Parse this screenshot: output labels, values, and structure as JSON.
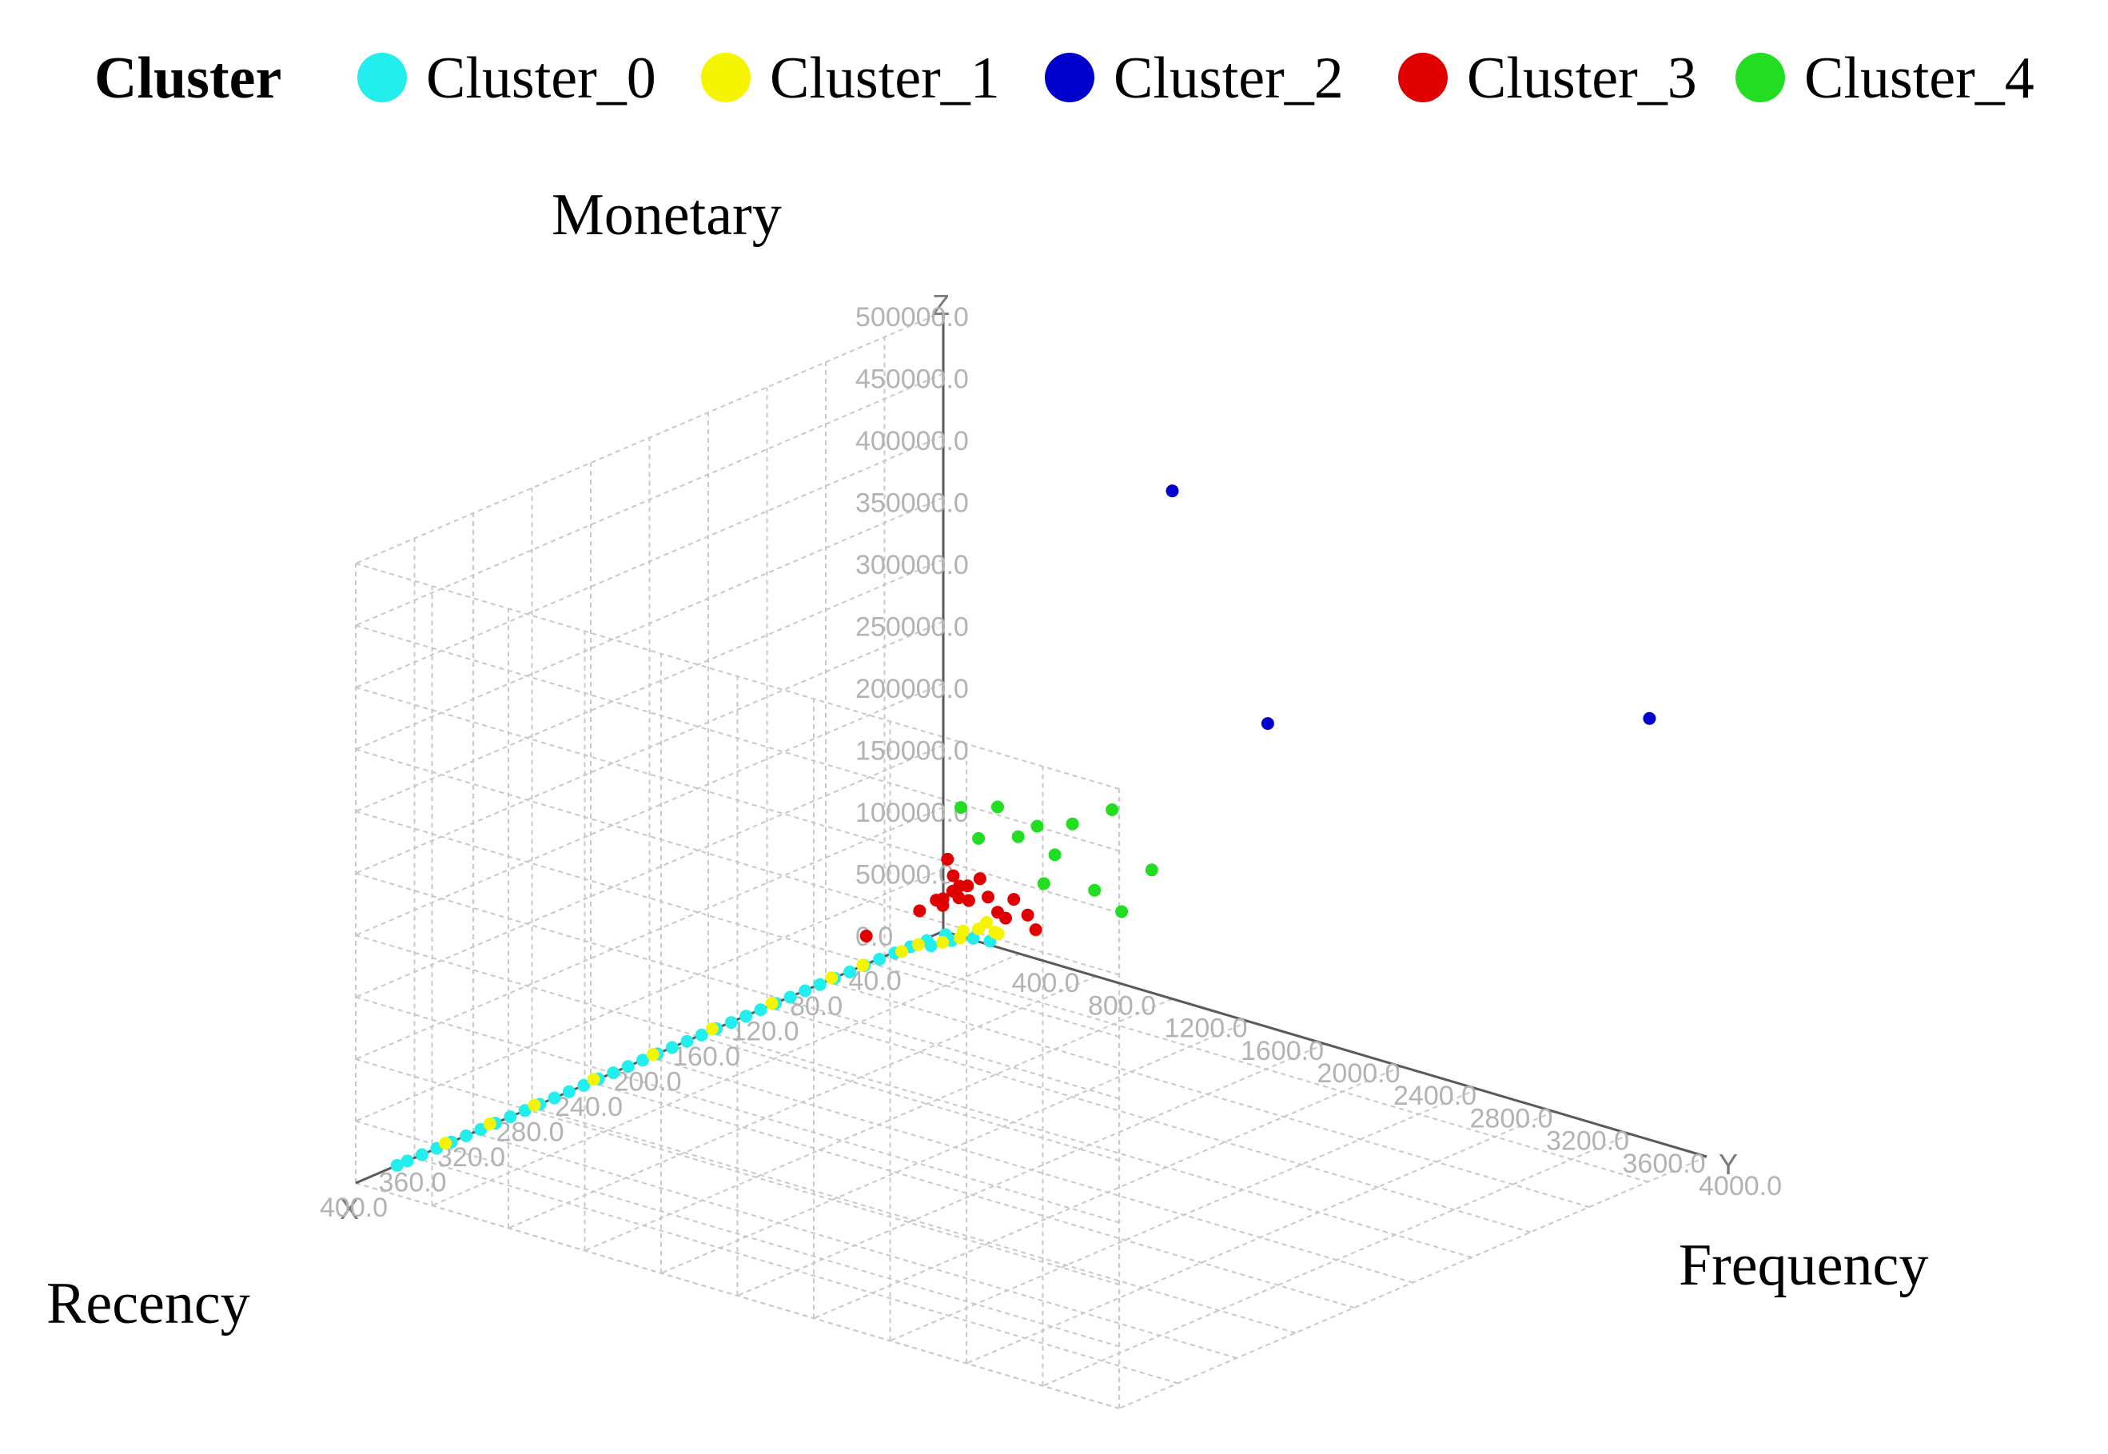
{
  "chart_data": {
    "type": "scatter",
    "legend": {
      "title": "Cluster",
      "placement": "top",
      "entries": [
        {
          "name": "Cluster_0",
          "color": "#22eeee"
        },
        {
          "name": "Cluster_1",
          "color": "#f5f500"
        },
        {
          "name": "Cluster_2",
          "color": "#0000cc"
        },
        {
          "name": "Cluster_3",
          "color": "#e00000"
        },
        {
          "name": "Cluster_4",
          "color": "#22dd22"
        }
      ]
    },
    "axes": {
      "x": {
        "title": "Recency",
        "letter": "X",
        "range": [
          0,
          400
        ],
        "ticks": [
          "0.0",
          "40.0",
          "80.0",
          "120.0",
          "160.0",
          "200.0",
          "240.0",
          "280.0",
          "320.0",
          "360.0",
          "400.0"
        ]
      },
      "y": {
        "title": "Frequency",
        "letter": "Y",
        "range": [
          0,
          4000
        ],
        "ticks": [
          "0.0",
          "400.0",
          "800.0",
          "1200.0",
          "1600.0",
          "2000.0",
          "2400.0",
          "2800.0",
          "3200.0",
          "3600.0",
          "4000.0"
        ]
      },
      "z": {
        "title": "Monetary",
        "letter": "Z",
        "range": [
          0,
          500000
        ],
        "ticks": [
          "0.0",
          "50000.0",
          "100000.0",
          "150000.0",
          "200000.0",
          "250000.0",
          "300000.0",
          "350000.0",
          "400000.0",
          "450000.0",
          "500000.0"
        ]
      }
    },
    "grid": true,
    "series": [
      {
        "name": "Cluster_0",
        "color": "#22eeee",
        "points": [
          {
            "x": 5,
            "y": 50,
            "z": 2000
          },
          {
            "x": 15,
            "y": 30,
            "z": 1500
          },
          {
            "x": 25,
            "y": 20,
            "z": 1000
          },
          {
            "x": 35,
            "y": 15,
            "z": 900
          },
          {
            "x": 45,
            "y": 12,
            "z": 800
          },
          {
            "x": 55,
            "y": 10,
            "z": 700
          },
          {
            "x": 65,
            "y": 10,
            "z": 600
          },
          {
            "x": 75,
            "y": 8,
            "z": 600
          },
          {
            "x": 85,
            "y": 8,
            "z": 500
          },
          {
            "x": 95,
            "y": 7,
            "z": 500
          },
          {
            "x": 105,
            "y": 6,
            "z": 400
          },
          {
            "x": 115,
            "y": 6,
            "z": 400
          },
          {
            "x": 125,
            "y": 5,
            "z": 400
          },
          {
            "x": 135,
            "y": 5,
            "z": 300
          },
          {
            "x": 145,
            "y": 5,
            "z": 300
          },
          {
            "x": 155,
            "y": 4,
            "z": 300
          },
          {
            "x": 165,
            "y": 4,
            "z": 300
          },
          {
            "x": 175,
            "y": 4,
            "z": 250
          },
          {
            "x": 185,
            "y": 3,
            "z": 250
          },
          {
            "x": 195,
            "y": 3,
            "z": 250
          },
          {
            "x": 205,
            "y": 3,
            "z": 200
          },
          {
            "x": 215,
            "y": 3,
            "z": 200
          },
          {
            "x": 225,
            "y": 3,
            "z": 200
          },
          {
            "x": 235,
            "y": 2,
            "z": 200
          },
          {
            "x": 245,
            "y": 2,
            "z": 200
          },
          {
            "x": 255,
            "y": 2,
            "z": 150
          },
          {
            "x": 265,
            "y": 2,
            "z": 150
          },
          {
            "x": 275,
            "y": 2,
            "z": 150
          },
          {
            "x": 285,
            "y": 2,
            "z": 150
          },
          {
            "x": 295,
            "y": 2,
            "z": 150
          },
          {
            "x": 305,
            "y": 1,
            "z": 100
          },
          {
            "x": 315,
            "y": 1,
            "z": 100
          },
          {
            "x": 325,
            "y": 1,
            "z": 100
          },
          {
            "x": 335,
            "y": 1,
            "z": 100
          },
          {
            "x": 345,
            "y": 1,
            "z": 100
          },
          {
            "x": 355,
            "y": 1,
            "z": 100
          },
          {
            "x": 365,
            "y": 1,
            "z": 100
          },
          {
            "x": 372,
            "y": 1,
            "z": 100
          },
          {
            "x": 10,
            "y": 120,
            "z": 3000
          },
          {
            "x": 20,
            "y": 90,
            "z": 2500
          },
          {
            "x": 3,
            "y": 180,
            "z": 4000
          },
          {
            "x": 2,
            "y": 260,
            "z": 5000
          }
        ]
      },
      {
        "name": "Cluster_1",
        "color": "#f5f500",
        "points": [
          {
            "x": 2,
            "y": 200,
            "z": 12000
          },
          {
            "x": 4,
            "y": 300,
            "z": 15000
          },
          {
            "x": 6,
            "y": 150,
            "z": 10000
          },
          {
            "x": 8,
            "y": 350,
            "z": 18000
          },
          {
            "x": 3,
            "y": 250,
            "z": 20000
          },
          {
            "x": 12,
            "y": 180,
            "z": 9000
          },
          {
            "x": 20,
            "y": 150,
            "z": 8000
          },
          {
            "x": 30,
            "y": 100,
            "z": 9000
          },
          {
            "x": 40,
            "y": 90,
            "z": 8000
          },
          {
            "x": 60,
            "y": 40,
            "z": 5000
          },
          {
            "x": 80,
            "y": 30,
            "z": 4500
          },
          {
            "x": 120,
            "y": 25,
            "z": 4000
          },
          {
            "x": 160,
            "y": 20,
            "z": 3500
          },
          {
            "x": 200,
            "y": 18,
            "z": 3000
          },
          {
            "x": 240,
            "y": 15,
            "z": 3000
          },
          {
            "x": 280,
            "y": 12,
            "z": 2500
          },
          {
            "x": 310,
            "y": 10,
            "z": 2500
          },
          {
            "x": 340,
            "y": 8,
            "z": 2000
          }
        ]
      },
      {
        "name": "Cluster_2",
        "color": "#0000cc",
        "points": [
          {
            "x": 0,
            "y": 1200,
            "z": 410000
          },
          {
            "x": 0,
            "y": 3700,
            "z": 340000
          },
          {
            "x": 0,
            "y": 1700,
            "z": 245000
          }
        ]
      },
      {
        "name": "Cluster_3",
        "color": "#e00000",
        "points": [
          {
            "x": 1,
            "y": 60,
            "z": 48000
          },
          {
            "x": 2,
            "y": 100,
            "z": 42000
          },
          {
            "x": 3,
            "y": 150,
            "z": 45000
          },
          {
            "x": 1,
            "y": 200,
            "z": 52000
          },
          {
            "x": 2,
            "y": 250,
            "z": 40000
          },
          {
            "x": 4,
            "y": 80,
            "z": 38000
          },
          {
            "x": 5,
            "y": 120,
            "z": 35000
          },
          {
            "x": 6,
            "y": 180,
            "z": 36000
          },
          {
            "x": 2,
            "y": 300,
            "z": 30000
          },
          {
            "x": 8,
            "y": 60,
            "z": 33000
          },
          {
            "x": 10,
            "y": 40,
            "z": 32000
          },
          {
            "x": 12,
            "y": 90,
            "z": 31000
          },
          {
            "x": 3,
            "y": 350,
            "z": 28000
          },
          {
            "x": 1,
            "y": 450,
            "z": 34000
          },
          {
            "x": 2,
            "y": 500,
            "z": 25000
          },
          {
            "x": 20,
            "y": 30,
            "z": 28000
          },
          {
            "x": 1,
            "y": 30,
            "z": 60000
          },
          {
            "x": 4,
            "y": 400,
            "z": 46000
          },
          {
            "x": 55,
            "y": 20,
            "z": 25000
          }
        ]
      },
      {
        "name": "Cluster_4",
        "color": "#22dd22",
        "points": [
          {
            "x": 1,
            "y": 100,
            "z": 105000
          },
          {
            "x": 2,
            "y": 300,
            "z": 115000
          },
          {
            "x": 1,
            "y": 500,
            "z": 108000
          },
          {
            "x": 3,
            "y": 700,
            "z": 120000
          },
          {
            "x": 2,
            "y": 900,
            "z": 140000
          },
          {
            "x": 1,
            "y": 1100,
            "z": 100000
          },
          {
            "x": 2,
            "y": 600,
            "z": 90000
          },
          {
            "x": 1,
            "y": 400,
            "z": 95000
          },
          {
            "x": 2,
            "y": 200,
            "z": 85000
          },
          {
            "x": 1,
            "y": 800,
            "z": 70000
          },
          {
            "x": 3,
            "y": 550,
            "z": 65000
          },
          {
            "x": 2,
            "y": 950,
            "z": 60000
          }
        ]
      }
    ]
  }
}
